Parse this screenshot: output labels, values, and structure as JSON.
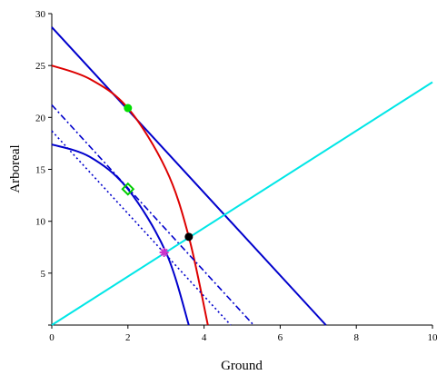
{
  "chart_data": {
    "type": "line",
    "title": "",
    "xlabel": "Ground",
    "ylabel": "Arboreal",
    "xlim": [
      0,
      10
    ],
    "ylim": [
      0,
      30
    ],
    "x_ticks": [
      "0",
      "2",
      "4",
      "6",
      "8",
      "10"
    ],
    "y_ticks": [
      "",
      "5",
      "10",
      "15",
      "20",
      "25",
      "30"
    ],
    "grid": false,
    "legend": "none",
    "series": [
      {
        "style": "solid",
        "color": "#0000cc",
        "points": [
          [
            0,
            28.7
          ],
          [
            7.2,
            0
          ]
        ]
      },
      {
        "style": "solid",
        "color": "#dd0000",
        "points": [
          [
            0,
            25.0
          ],
          [
            1.0,
            23.7
          ],
          [
            2.0,
            20.9
          ],
          [
            3.0,
            15.0
          ],
          [
            3.6,
            8.5
          ],
          [
            4.1,
            0
          ]
        ]
      },
      {
        "style": "solid",
        "color": "#0000cc",
        "points": [
          [
            0,
            17.4
          ],
          [
            1.0,
            16.2
          ],
          [
            2.0,
            13.1
          ],
          [
            3.0,
            7.0
          ],
          [
            3.6,
            0
          ]
        ]
      },
      {
        "style": "dash-dot",
        "color": "#0000cc",
        "points": [
          [
            0,
            21.2
          ],
          [
            5.3,
            0
          ]
        ]
      },
      {
        "style": "dotted",
        "color": "#0000cc",
        "points": [
          [
            0,
            18.7
          ],
          [
            4.7,
            0
          ]
        ]
      },
      {
        "style": "solid",
        "color": "#00e6e6",
        "points": [
          [
            0,
            0
          ],
          [
            10,
            23.4
          ]
        ]
      }
    ],
    "markers": [
      {
        "shape": "filled-circle",
        "color": "#00dd00",
        "x": 2.0,
        "y": 20.9
      },
      {
        "shape": "filled-circle",
        "color": "#000000",
        "x": 3.6,
        "y": 8.5
      },
      {
        "shape": "diamond",
        "color": "#00cc00",
        "x": 2.0,
        "y": 13.1
      },
      {
        "shape": "star",
        "color": "#cc33cc",
        "x": 2.95,
        "y": 7.0
      }
    ]
  }
}
